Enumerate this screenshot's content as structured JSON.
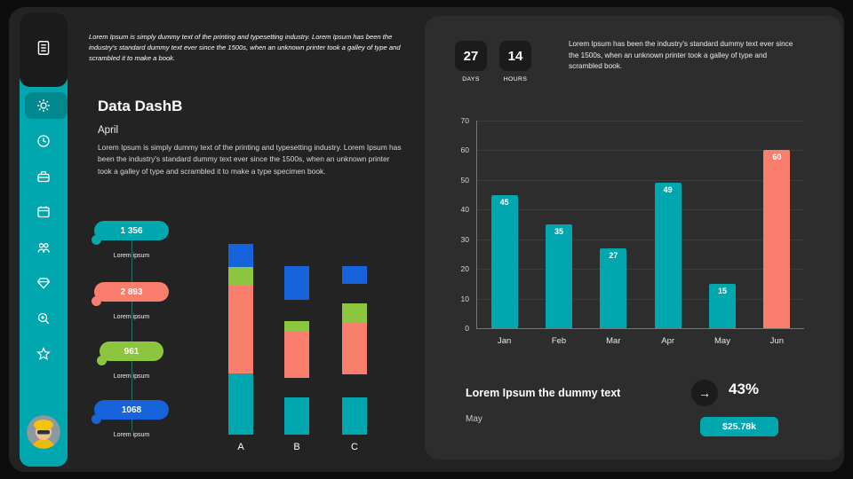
{
  "colors": {
    "teal": "#00A7AE",
    "salmon": "#F97E6D",
    "green": "#8CC63E",
    "blue": "#1663DC",
    "gap": "#232323",
    "panel_bg": "#2D2D2D",
    "card_bg": "#232323",
    "dark_box": "#1B1B1B"
  },
  "sidebar": {
    "icons": [
      "document-icon",
      "gear-icon",
      "clock-icon",
      "toolbox-icon",
      "calendar-icon",
      "people-icon",
      "diamond-icon",
      "zoom-in-icon",
      "star-icon"
    ],
    "active": "gear-icon"
  },
  "intro": {
    "text": "Lorem Ipsum is simply dummy text of the printing and typesetting industry. Lorem Ipsum has been the industry's standard dummy text ever since the 1500s, when an unknown printer took a galley of type and scrambled it to make a book."
  },
  "main": {
    "title": "Data DashB",
    "subtitle": "April",
    "body": "Lorem Ipsum is simply dummy text of the printing and typesetting industry. Lorem Ipsum has been the industry's standard dummy text ever since the 1500s, when an unknown printer took a galley of type and scrambled it to make a type specimen book."
  },
  "timeline": {
    "items": [
      {
        "value": "1 356",
        "label": "Lorem ipsum",
        "color": "teal"
      },
      {
        "value": "2 893",
        "label": "Lorem ipsum",
        "color": "salmon"
      },
      {
        "value": "961",
        "label": "Lorem ipsum",
        "color": "green"
      },
      {
        "value": "1068",
        "label": "Lorem ipsum",
        "color": "blue"
      }
    ]
  },
  "panel": {
    "countdown": {
      "days_value": "27",
      "days_label": "DAYS",
      "hours_value": "14",
      "hours_label": "HOURS"
    },
    "text": "Lorem Ipsum has been the industry's standard dummy text ever since the 1500s, when an unknown printer took a galley of type and scrambled book.",
    "footer": {
      "title": "Lorem Ipsum the dummy text",
      "subtitle": "May",
      "arrow_icon": "→",
      "percent": "43%",
      "badge": "$25.78k"
    }
  },
  "chart_data": [
    {
      "type": "bar",
      "name": "monthly-values",
      "categories": [
        "Jan",
        "Feb",
        "Mar",
        "Apr",
        "May",
        "Jun"
      ],
      "values": [
        45,
        35,
        27,
        49,
        15,
        60
      ],
      "bar_colors": [
        "teal",
        "teal",
        "teal",
        "teal",
        "teal",
        "salmon"
      ],
      "ylim": [
        0,
        70
      ],
      "yticks": [
        0,
        10,
        20,
        30,
        40,
        50,
        60,
        70
      ],
      "grid": true,
      "value_labels": true,
      "title": "",
      "xlabel": "",
      "ylabel": ""
    },
    {
      "type": "stacked-bar",
      "name": "abc-stacked",
      "categories": [
        "A",
        "B",
        "C"
      ],
      "unit": "px-height-estimate",
      "bars": [
        {
          "label": "A",
          "segments": [
            [
              "blue",
              26
            ],
            [
              "green",
              21
            ],
            [
              "salmon",
              99
            ],
            [
              "teal",
              69
            ]
          ]
        },
        {
          "label": "B",
          "segments": [
            [
              "blue",
              38
            ],
            [
              "gap",
              24
            ],
            [
              "green",
              12
            ],
            [
              "salmon",
              52
            ],
            [
              "gap",
              22
            ],
            [
              "teal",
              42
            ]
          ]
        },
        {
          "label": "C",
          "segments": [
            [
              "blue",
              20
            ],
            [
              "gap",
              22
            ],
            [
              "green",
              22
            ],
            [
              "salmon",
              58
            ],
            [
              "gap",
              26
            ],
            [
              "teal",
              42
            ]
          ]
        }
      ]
    }
  ]
}
